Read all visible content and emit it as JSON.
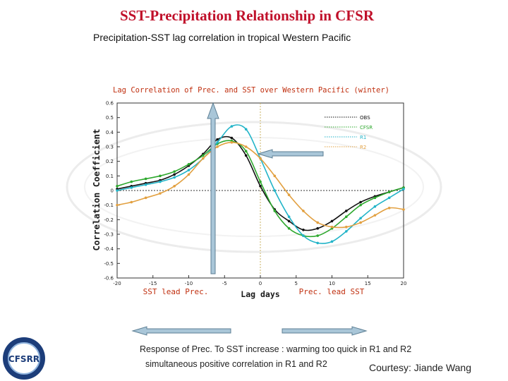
{
  "slide": {
    "title": "SST-Precipitation Relationship in CFSR",
    "subtitle": "Precipitation-SST lag correlation in tropical Western Pacific",
    "note_line1": "Response of Prec. To SST increase : warming too quick in R1 and R2",
    "note_line2": "simultaneous positive correlation in R1 and R2",
    "courtesy": "Courtesy: Jiande Wang",
    "logo_text": "CFSRR"
  },
  "colors": {
    "title": "#c0102a",
    "plot_title": "#c03010",
    "axis_label": "#1a1a1a",
    "annotation": "#c03010",
    "arrow_fill": "#a9c6d8",
    "arrow_stroke": "#5d7f94"
  },
  "chart_data": {
    "type": "line",
    "title": "Lag Correlation of Prec. and SST over Western Pacific (winter)",
    "xlabel": "Lag days",
    "ylabel": "Correlation Coefficient",
    "xlim": [
      -20,
      20
    ],
    "ylim": [
      -0.6,
      0.6
    ],
    "xticks": [
      -20,
      -15,
      -10,
      -5,
      0,
      5,
      10,
      15,
      20
    ],
    "xtick_labels": [
      "-20",
      "-15",
      "-10",
      "-5",
      "0",
      "5",
      "10",
      "15",
      "20"
    ],
    "yticks": [
      -0.6,
      -0.5,
      -0.4,
      -0.3,
      -0.2,
      -0.1,
      0,
      0.1,
      0.2,
      0.3,
      0.4,
      0.5,
      0.6
    ],
    "ytick_labels": [
      "-0.6",
      "-0.5",
      "-0.4",
      "-0.3",
      "-0.2",
      "-0.1",
      "0",
      "0.1",
      "0.2",
      "0.3",
      "0.4",
      "0.5",
      "0.6"
    ],
    "annotations": {
      "left": "SST lead Prec.",
      "right": "Prec. lead SST"
    },
    "x": [
      -20,
      -18,
      -16,
      -14,
      -12,
      -10,
      -8,
      -6,
      -4,
      -2,
      0,
      2,
      4,
      6,
      8,
      10,
      12,
      14,
      16,
      18,
      20
    ],
    "series": [
      {
        "name": "OBS",
        "color": "#111111",
        "values": [
          0.01,
          0.03,
          0.05,
          0.07,
          0.11,
          0.17,
          0.25,
          0.35,
          0.36,
          0.24,
          0.03,
          -0.13,
          -0.21,
          -0.27,
          -0.26,
          -0.21,
          -0.14,
          -0.08,
          -0.04,
          -0.01,
          0.02
        ]
      },
      {
        "name": "CFSR",
        "color": "#2ea82e",
        "values": [
          0.03,
          0.06,
          0.08,
          0.1,
          0.13,
          0.18,
          0.24,
          0.32,
          0.34,
          0.27,
          0.06,
          -0.14,
          -0.26,
          -0.31,
          -0.31,
          -0.26,
          -0.18,
          -0.1,
          -0.05,
          -0.01,
          0.02
        ]
      },
      {
        "name": "R1",
        "color": "#22b4c8",
        "values": [
          0.0,
          0.02,
          0.04,
          0.06,
          0.09,
          0.14,
          0.22,
          0.33,
          0.44,
          0.42,
          0.22,
          0.0,
          -0.18,
          -0.31,
          -0.36,
          -0.35,
          -0.28,
          -0.19,
          -0.11,
          -0.05,
          0.01
        ]
      },
      {
        "name": "R2",
        "color": "#e2a040",
        "values": [
          -0.1,
          -0.08,
          -0.05,
          -0.02,
          0.03,
          0.11,
          0.22,
          0.3,
          0.33,
          0.3,
          0.22,
          0.1,
          -0.03,
          -0.14,
          -0.22,
          -0.25,
          -0.25,
          -0.22,
          -0.17,
          -0.12,
          -0.13
        ]
      }
    ]
  }
}
